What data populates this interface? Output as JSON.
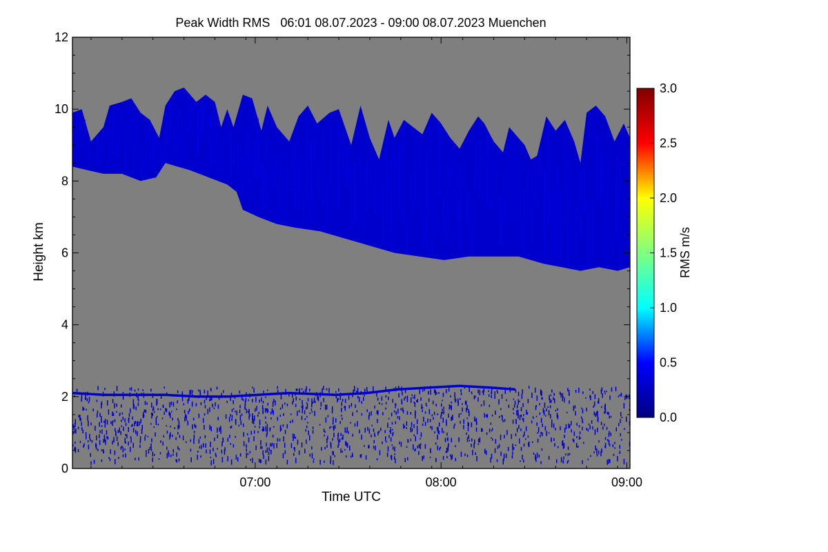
{
  "chart_data": {
    "type": "heatmap",
    "title": "Peak Width RMS   06:01 08.07.2023 - 09:00 08.07.2023 Muenchen",
    "xlabel": "Time UTC",
    "ylabel": "Height km",
    "xlim": [
      "06:01",
      "09:01"
    ],
    "xlim_minutes": [
      0,
      180
    ],
    "ylim": [
      0,
      12
    ],
    "x_ticks": [
      {
        "label": "07:00",
        "minutes": 59
      },
      {
        "label": "08:00",
        "minutes": 119
      },
      {
        "label": "09:00",
        "minutes": 179
      }
    ],
    "y_ticks": [
      {
        "label": "0",
        "value": 0
      },
      {
        "label": "2",
        "value": 2
      },
      {
        "label": "4",
        "value": 4
      },
      {
        "label": "6",
        "value": 6
      },
      {
        "label": "8",
        "value": 8
      },
      {
        "label": "10",
        "value": 10
      },
      {
        "label": "12",
        "value": 12
      }
    ],
    "background_color": "#7f7f7f",
    "colorbar": {
      "label": "RMS m/s",
      "range": [
        0.0,
        3.0
      ],
      "ticks": [
        {
          "label": "0.0",
          "value": 0.0
        },
        {
          "label": "0.5",
          "value": 0.5
        },
        {
          "label": "1.0",
          "value": 1.0
        },
        {
          "label": "1.5",
          "value": 1.5
        },
        {
          "label": "2.0",
          "value": 2.0
        },
        {
          "label": "2.5",
          "value": 2.5
        },
        {
          "label": "3.0",
          "value": 3.0
        }
      ],
      "colors": [
        "#00007f",
        "#0000ff",
        "#00ffff",
        "#7fff7f",
        "#ffff00",
        "#ff0000",
        "#7f0000"
      ]
    },
    "upper_layer": {
      "typical_rms": 0.3,
      "top_km": [
        [
          0,
          9.9
        ],
        [
          3,
          10.0
        ],
        [
          6,
          9.1
        ],
        [
          10,
          9.5
        ],
        [
          12,
          10.1
        ],
        [
          16,
          10.2
        ],
        [
          19,
          10.3
        ],
        [
          22,
          9.9
        ],
        [
          25,
          9.7
        ],
        [
          28,
          9.2
        ],
        [
          30,
          10.1
        ],
        [
          33,
          10.5
        ],
        [
          36,
          10.6
        ],
        [
          40,
          10.2
        ],
        [
          43,
          10.4
        ],
        [
          46,
          10.2
        ],
        [
          48,
          9.5
        ],
        [
          50,
          10.0
        ],
        [
          52,
          9.5
        ],
        [
          55,
          10.4
        ],
        [
          58,
          10.3
        ],
        [
          61,
          9.4
        ],
        [
          63,
          10.1
        ],
        [
          66,
          9.5
        ],
        [
          70,
          9.1
        ],
        [
          73,
          9.8
        ],
        [
          76,
          10.1
        ],
        [
          79,
          9.6
        ],
        [
          83,
          9.9
        ],
        [
          86,
          10.0
        ],
        [
          90,
          9.0
        ],
        [
          93,
          10.1
        ],
        [
          96,
          9.2
        ],
        [
          99,
          8.6
        ],
        [
          102,
          9.7
        ],
        [
          104,
          9.2
        ],
        [
          107,
          9.7
        ],
        [
          110,
          9.5
        ],
        [
          113,
          9.3
        ],
        [
          116,
          9.9
        ],
        [
          119,
          9.6
        ],
        [
          122,
          9.2
        ],
        [
          125,
          8.9
        ],
        [
          128,
          9.4
        ],
        [
          131,
          9.8
        ],
        [
          133,
          9.6
        ],
        [
          136,
          9.1
        ],
        [
          139,
          8.8
        ],
        [
          141,
          9.5
        ],
        [
          143,
          9.3
        ],
        [
          146,
          9.0
        ],
        [
          148,
          8.6
        ],
        [
          150,
          8.7
        ],
        [
          153,
          9.8
        ],
        [
          156,
          9.4
        ],
        [
          159,
          9.7
        ],
        [
          162,
          9.1
        ],
        [
          164,
          8.5
        ],
        [
          166,
          9.9
        ],
        [
          169,
          10.1
        ],
        [
          172,
          9.8
        ],
        [
          175,
          9.1
        ],
        [
          178,
          9.6
        ],
        [
          180,
          9.2
        ]
      ],
      "base_km": [
        [
          0,
          8.4
        ],
        [
          5,
          8.3
        ],
        [
          10,
          8.2
        ],
        [
          16,
          8.2
        ],
        [
          22,
          8.0
        ],
        [
          27,
          8.1
        ],
        [
          30,
          8.5
        ],
        [
          38,
          8.3
        ],
        [
          44,
          8.1
        ],
        [
          50,
          7.9
        ],
        [
          53,
          7.7
        ],
        [
          55,
          7.2
        ],
        [
          60,
          7.0
        ],
        [
          66,
          6.8
        ],
        [
          72,
          6.7
        ],
        [
          80,
          6.6
        ],
        [
          88,
          6.4
        ],
        [
          96,
          6.2
        ],
        [
          104,
          6.0
        ],
        [
          112,
          5.9
        ],
        [
          120,
          5.8
        ],
        [
          128,
          5.9
        ],
        [
          136,
          5.9
        ],
        [
          144,
          5.9
        ],
        [
          152,
          5.7
        ],
        [
          158,
          5.6
        ],
        [
          164,
          5.5
        ],
        [
          170,
          5.6
        ],
        [
          176,
          5.5
        ],
        [
          180,
          5.6
        ]
      ]
    },
    "boundary_layer": {
      "typical_rms": 0.3,
      "line_km": [
        [
          0,
          2.1
        ],
        [
          10,
          2.05
        ],
        [
          20,
          2.05
        ],
        [
          30,
          2.05
        ],
        [
          40,
          2.0
        ],
        [
          50,
          2.0
        ],
        [
          60,
          2.05
        ],
        [
          70,
          2.1
        ],
        [
          85,
          2.05
        ],
        [
          95,
          2.1
        ],
        [
          105,
          2.2
        ],
        [
          115,
          2.25
        ],
        [
          125,
          2.3
        ],
        [
          135,
          2.25
        ],
        [
          143,
          2.2
        ]
      ],
      "scatter_height_km": [
        0.2,
        2.3
      ]
    }
  }
}
